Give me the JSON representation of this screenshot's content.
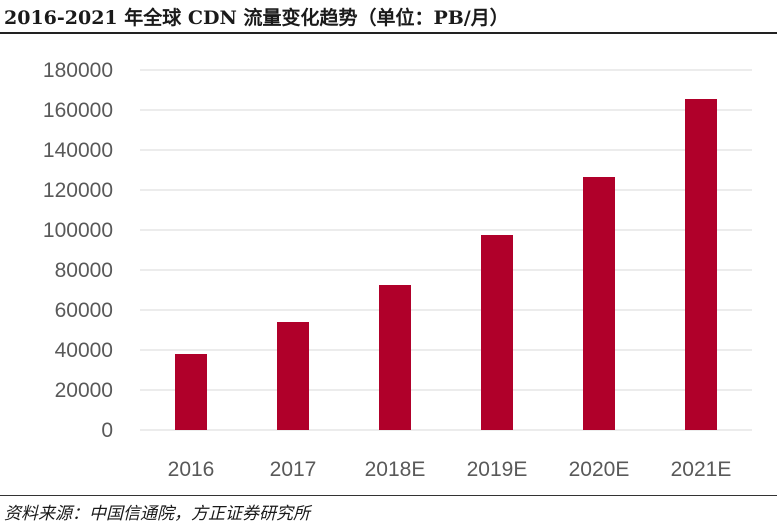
{
  "header": {
    "title": "2016-2021 年全球 CDN 流量变化趋势（单位：PB/月）"
  },
  "footer": {
    "source": "资料来源：中国信通院，方正证券研究所"
  },
  "colors": {
    "bar": "#B0002A",
    "grid": "#D9D9D9",
    "tick_text": "#595959"
  },
  "chart_data": {
    "type": "bar",
    "title": "2016-2021 年全球 CDN 流量变化趋势（单位：PB/月）",
    "xlabel": "",
    "ylabel": "",
    "categories": [
      "2016",
      "2017",
      "2018E",
      "2019E",
      "2020E",
      "2021E"
    ],
    "values": [
      38000,
      54000,
      72500,
      97500,
      126500,
      165500
    ],
    "ylim": [
      0,
      180000
    ],
    "yticks": [
      0,
      20000,
      40000,
      60000,
      80000,
      100000,
      120000,
      140000,
      160000,
      180000
    ],
    "grid": true,
    "legend": "none"
  }
}
